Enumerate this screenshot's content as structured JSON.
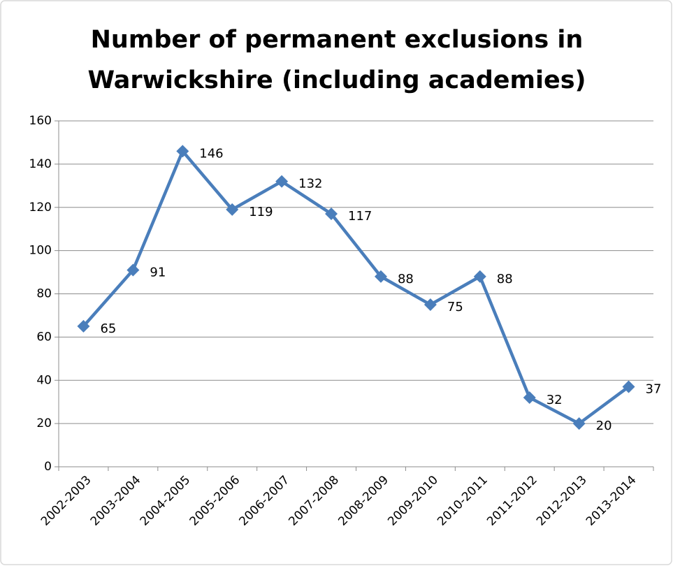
{
  "chart_data": {
    "type": "line",
    "title": [
      "Number of permanent exclusions in",
      "Warwickshire (including academies)"
    ],
    "categories": [
      "2002-2003",
      "2003-2004",
      "2004-2005",
      "2005-2006",
      "2006-2007",
      "2007-2008",
      "2008-2009",
      "2009-2010",
      "2010-2011",
      "2011-2012",
      "2012-2013",
      "2013-2014"
    ],
    "series": [
      {
        "color": "#4a7ebb",
        "values": [
          65,
          91,
          146,
          119,
          132,
          117,
          88,
          75,
          88,
          32,
          20,
          37
        ]
      }
    ],
    "ylim": [
      0,
      160
    ],
    "yticks": [
      0,
      20,
      40,
      60,
      80,
      100,
      120,
      140,
      160
    ],
    "grid": true
  }
}
